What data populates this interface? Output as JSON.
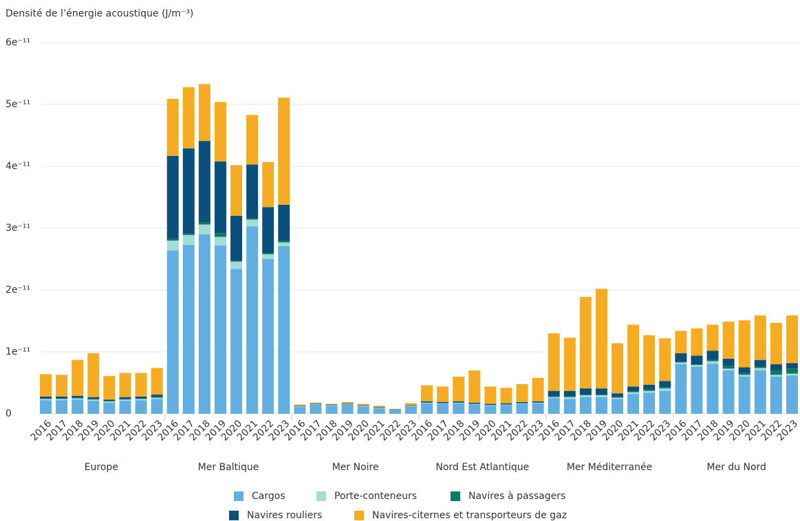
{
  "chart_data": {
    "type": "stacked_bar",
    "title": "Densité de l’énergie acoustique (J/m⁻³)",
    "groups": [
      "Europe",
      "Mer Baltique",
      "Mer Noire",
      "Nord Est Atlantique",
      "Mer Méditerranée",
      "Mer du Nord"
    ],
    "categories": [
      "2016",
      "2017",
      "2018",
      "2019",
      "2020",
      "2021",
      "2022",
      "2023",
      "2016",
      "2017",
      "2018",
      "2019",
      "2020",
      "2021",
      "2022",
      "2023",
      "2016",
      "2017",
      "2018",
      "2019",
      "2020",
      "2021",
      "2022",
      "2023",
      "2016",
      "2017",
      "2018",
      "2019",
      "2020",
      "2021",
      "2022",
      "2023",
      "2016",
      "2017",
      "2018",
      "2019",
      "2020",
      "2021",
      "2022",
      "2023",
      "2016",
      "2017",
      "2018",
      "2019",
      "2020",
      "2021",
      "2022",
      "2023"
    ],
    "ylim": [
      0,
      6e-11
    ],
    "yticks": [
      0,
      {
        "value": 1e-11,
        "label": "1e⁻¹¹"
      },
      {
        "value": 2e-11,
        "label": "2e⁻¹¹"
      },
      {
        "value": 3e-11,
        "label": "3e⁻¹¹"
      },
      {
        "value": 4e-11,
        "label": "4e⁻¹¹"
      },
      {
        "value": 5e-11,
        "label": "5e⁻¹¹"
      },
      {
        "value": 6e-11,
        "label": "6e⁻¹¹"
      }
    ],
    "grid": true,
    "legend": "bottom",
    "series": [
      {
        "name": "Cargos",
        "color": "#62aee0",
        "values": [
          2.2e-12,
          2.2e-12,
          2.3e-12,
          2.1e-12,
          1.8e-12,
          2.1e-12,
          2.2e-12,
          2.4e-12,
          2.64e-11,
          2.73e-11,
          2.9e-11,
          2.72e-11,
          2.34e-11,
          3.03e-11,
          2.5e-11,
          2.71e-11,
          1.1e-12,
          1.5e-12,
          1.3e-12,
          1.5e-12,
          1.2e-12,
          9e-13,
          5e-13,
          1.2e-12,
          1.7e-12,
          1.6e-12,
          1.7e-12,
          1.5e-12,
          1.3e-12,
          1.4e-12,
          1.6e-12,
          1.7e-12,
          2.5e-12,
          2.4e-12,
          2.7e-12,
          2.7e-12,
          2.4e-12,
          3.2e-12,
          3.4e-12,
          3.7e-12,
          8e-12,
          7.6e-12,
          8.1e-12,
          7e-12,
          6e-12,
          7e-12,
          6e-12,
          6.2e-12
        ]
      },
      {
        "name": "Porte-conteneurs",
        "color": "#a3dcd6",
        "values": [
          2e-13,
          2e-13,
          2e-13,
          2e-13,
          2e-13,
          2e-13,
          2e-13,
          2e-13,
          1.6e-12,
          1.6e-12,
          1.6e-12,
          1.4e-12,
          1.2e-12,
          1.1e-12,
          8e-13,
          6e-13,
          1e-13,
          1e-13,
          1e-13,
          1e-13,
          1e-13,
          1e-13,
          1e-13,
          1e-13,
          1e-13,
          1e-13,
          1e-13,
          1e-13,
          1e-13,
          1e-13,
          1e-13,
          1e-13,
          2e-13,
          3e-13,
          3e-13,
          3e-13,
          2e-13,
          3e-13,
          3e-13,
          4e-13,
          3e-13,
          3e-13,
          4e-13,
          3e-13,
          3e-13,
          4e-13,
          3e-13,
          3e-13
        ]
      },
      {
        "name": "Navires à passagers",
        "color": "#0a7a63",
        "values": [
          1e-13,
          1e-13,
          1e-13,
          1e-13,
          1e-13,
          1e-13,
          1e-13,
          1e-13,
          3e-13,
          2e-13,
          4e-13,
          6e-13,
          1e-13,
          2e-13,
          2e-13,
          3e-13,
          0,
          0,
          0,
          0,
          0,
          0,
          0,
          0,
          0,
          0,
          0,
          0,
          0,
          0,
          0,
          0,
          1e-13,
          1e-13,
          1e-13,
          1e-13,
          1e-13,
          1e-13,
          2e-13,
          2e-13,
          1e-13,
          1e-13,
          2e-13,
          4e-13,
          3e-13,
          2e-13,
          7e-13,
          8e-13
        ]
      },
      {
        "name": "Navires rouliers",
        "color": "#0b4f7c",
        "values": [
          3e-13,
          3e-13,
          3e-13,
          3e-13,
          2e-13,
          3e-13,
          3e-13,
          4e-13,
          1.34e-11,
          1.38e-11,
          1.31e-11,
          1.16e-11,
          7.3e-12,
          8.7e-12,
          7.4e-12,
          5.8e-12,
          1e-13,
          1e-13,
          1e-13,
          1e-13,
          1e-13,
          1e-13,
          1e-13,
          1e-13,
          2e-13,
          2e-13,
          2e-13,
          2e-13,
          2e-13,
          2e-13,
          2e-13,
          2e-13,
          9e-13,
          9e-13,
          1e-12,
          1e-12,
          6e-13,
          8e-13,
          8e-13,
          1e-12,
          1.4e-12,
          1.4e-12,
          1.5e-12,
          1.2e-12,
          9e-13,
          1.1e-12,
          1e-12,
          9e-13
        ]
      },
      {
        "name": "Navires-citernes et transporteurs de gaz",
        "color": "#f5ab22",
        "values": [
          3.6e-12,
          3.5e-12,
          5.8e-12,
          7.1e-12,
          3.8e-12,
          3.9e-12,
          3.8e-12,
          4.3e-12,
          9.2e-12,
          9.9e-12,
          9.2e-12,
          9.6e-12,
          8.2e-12,
          8e-12,
          7.3e-12,
          1.73e-11,
          2e-13,
          1e-13,
          1e-13,
          2e-13,
          2e-13,
          2e-13,
          1e-13,
          3e-13,
          2.6e-12,
          2.5e-12,
          4e-12,
          5.2e-12,
          2.8e-12,
          2.5e-12,
          2.9e-12,
          3.8e-12,
          9.3e-12,
          8.6e-12,
          1.48e-11,
          1.61e-11,
          8.1e-12,
          1e-11,
          8e-12,
          6.9e-12,
          3.6e-12,
          4.4e-12,
          4.2e-12,
          6e-12,
          7.6e-12,
          7.2e-12,
          6.7e-12,
          7.7e-12
        ]
      }
    ]
  }
}
